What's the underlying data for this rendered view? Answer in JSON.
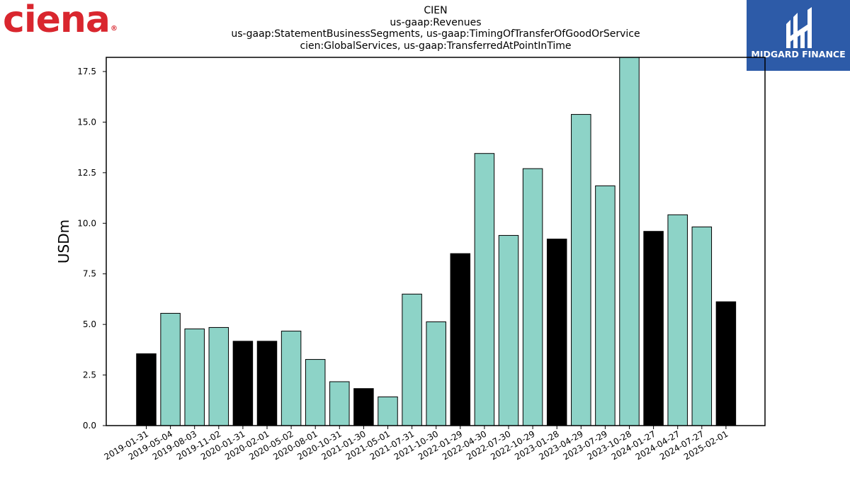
{
  "logos": {
    "left_logo": {
      "text": "ciena",
      "mark": "®",
      "color": "#d9262e"
    },
    "right_logo": {
      "text": "MIDGARD FINANCE",
      "background": "#2d5ba8"
    }
  },
  "chart_data": {
    "type": "bar",
    "title_lines": [
      "CIEN",
      "us-gaap:Revenues",
      "us-gaap:StatementBusinessSegments, us-gaap:TimingOfTransferOfGoodOrService",
      "cien:GlobalServices, us-gaap:TransferredAtPointInTime"
    ],
    "xlabel": "",
    "ylabel": "USDm",
    "ylim": [
      0,
      18.2
    ],
    "yticks": [
      0.0,
      2.5,
      5.0,
      7.5,
      10.0,
      12.5,
      15.0,
      17.5
    ],
    "ytick_labels": [
      "0.0",
      "2.5",
      "5.0",
      "7.5",
      "10.0",
      "12.5",
      "15.0",
      "17.5"
    ],
    "grid": false,
    "colors": {
      "annual": "#000000",
      "quarterly": "#8dd3c7",
      "edge": "#000000"
    },
    "categories": [
      "2019-01-31",
      "2019-05-04",
      "2019-08-03",
      "2019-11-02",
      "2020-01-31",
      "2020-02-01",
      "2020-05-02",
      "2020-08-01",
      "2020-10-31",
      "2021-01-30",
      "2021-05-01",
      "2021-07-31",
      "2021-10-30",
      "2022-01-29",
      "2022-04-30",
      "2022-07-30",
      "2022-10-29",
      "2023-01-28",
      "2023-04-29",
      "2023-07-29",
      "2023-10-28",
      "2024-01-27",
      "2024-04-27",
      "2024-07-27",
      "2025-02-01"
    ],
    "values": [
      3.55,
      5.55,
      4.78,
      4.85,
      4.17,
      4.17,
      4.67,
      3.27,
      2.17,
      1.83,
      1.42,
      6.5,
      5.13,
      8.5,
      13.45,
      9.4,
      12.7,
      9.22,
      15.38,
      11.85,
      18.2,
      9.6,
      10.42,
      9.82,
      6.12
    ],
    "bar_kinds": [
      "annual",
      "quarterly",
      "quarterly",
      "quarterly",
      "annual",
      "annual",
      "quarterly",
      "quarterly",
      "quarterly",
      "annual",
      "quarterly",
      "quarterly",
      "quarterly",
      "annual",
      "quarterly",
      "quarterly",
      "quarterly",
      "annual",
      "quarterly",
      "quarterly",
      "quarterly",
      "annual",
      "quarterly",
      "quarterly",
      "annual"
    ]
  }
}
